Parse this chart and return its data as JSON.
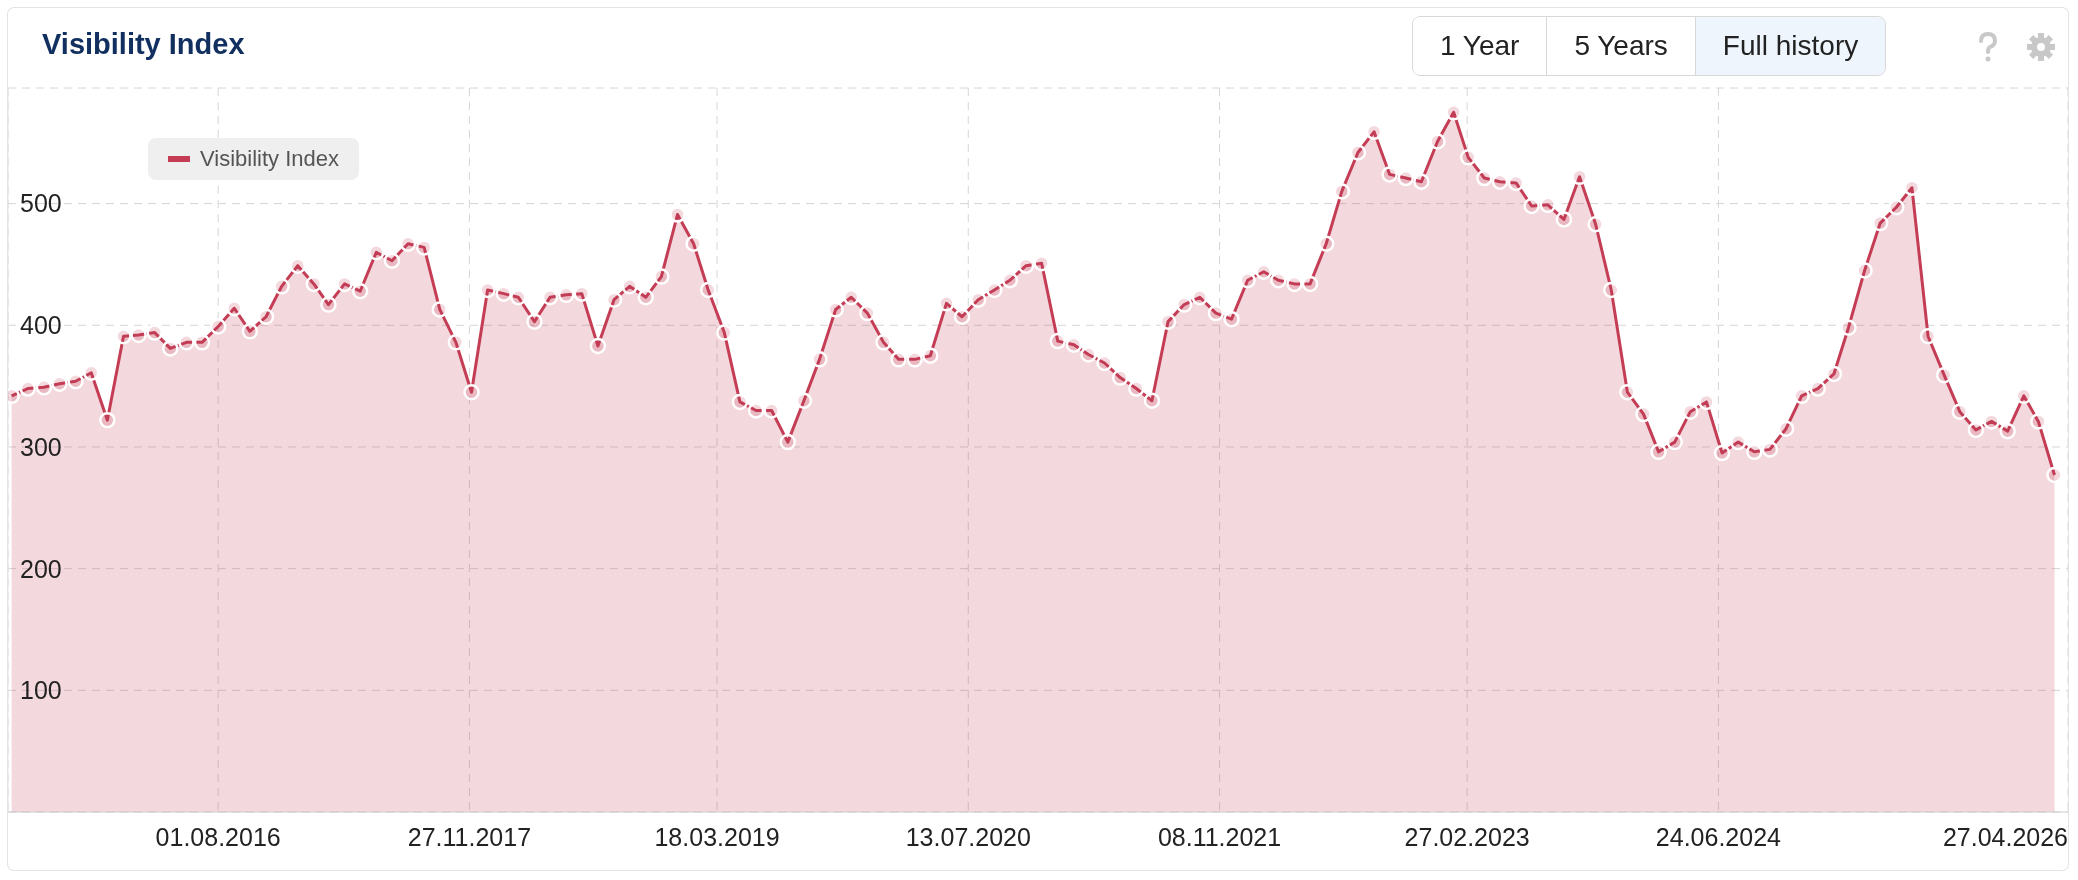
{
  "chart_data": {
    "type": "area",
    "title": "Visibility Index",
    "annotations": [
      "1 Year",
      "5 Years",
      "Full history"
    ],
    "x": [
      "2015-07",
      "2015-08",
      "2015-09",
      "2015-10",
      "2015-11",
      "2015-12",
      "2016-01",
      "2016-02",
      "2016-03",
      "2016-04",
      "2016-05",
      "2016-06",
      "2016-07",
      "2016-08",
      "2016-09",
      "2016-10",
      "2016-11",
      "2016-12",
      "2017-01",
      "2017-02",
      "2017-03",
      "2017-04",
      "2017-05",
      "2017-06",
      "2017-07",
      "2017-08",
      "2017-09",
      "2017-10",
      "2017-11",
      "2017-12",
      "2018-01",
      "2018-02",
      "2018-03",
      "2018-04",
      "2018-05",
      "2018-06",
      "2018-07",
      "2018-08",
      "2018-09",
      "2018-10",
      "2018-11",
      "2018-12",
      "2019-01",
      "2019-02",
      "2019-03",
      "2019-04",
      "2019-05",
      "2019-06",
      "2019-07",
      "2019-08",
      "2019-09",
      "2019-10",
      "2019-11",
      "2019-12",
      "2020-01",
      "2020-02",
      "2020-03",
      "2020-04",
      "2020-05",
      "2020-06",
      "2020-07",
      "2020-08",
      "2020-09",
      "2020-10",
      "2020-11",
      "2020-12",
      "2021-01",
      "2021-02",
      "2021-03",
      "2021-04",
      "2021-05",
      "2021-06",
      "2021-07",
      "2021-08",
      "2021-09",
      "2021-10",
      "2021-11",
      "2021-12",
      "2022-01",
      "2022-02",
      "2022-03",
      "2022-04",
      "2022-05",
      "2022-06",
      "2022-07",
      "2022-08",
      "2022-09",
      "2022-10",
      "2022-11",
      "2022-12",
      "2023-01",
      "2023-02",
      "2023-03",
      "2023-04",
      "2023-05",
      "2023-06",
      "2023-07",
      "2023-08",
      "2023-09",
      "2023-10",
      "2023-11",
      "2023-12",
      "2024-01",
      "2024-02",
      "2024-03",
      "2024-04",
      "2024-05",
      "2024-06",
      "2024-07",
      "2024-08",
      "2024-09",
      "2024-10",
      "2024-11",
      "2024-12",
      "2025-01",
      "2025-02",
      "2025-03",
      "2025-04",
      "2025-05",
      "2025-06",
      "2025-07",
      "2025-08",
      "2025-09",
      "2025-10",
      "2025-11",
      "2025-12",
      "2026-01",
      "2026-02",
      "2026-03",
      "2026-04"
    ],
    "series": [
      {
        "name": "Visibility Index",
        "color": "#c43d55",
        "values": [
          342,
          348,
          349,
          352,
          354,
          361,
          322,
          391,
          392,
          394,
          381,
          386,
          386,
          399,
          414,
          395,
          407,
          432,
          449,
          434,
          417,
          434,
          428,
          460,
          453,
          467,
          464,
          413,
          386,
          345,
          429,
          426,
          423,
          403,
          423,
          425,
          426,
          383,
          421,
          432,
          423,
          440,
          491,
          467,
          429,
          394,
          337,
          330,
          330,
          304,
          338,
          372,
          413,
          423,
          410,
          386,
          372,
          372,
          375,
          418,
          407,
          421,
          429,
          437,
          449,
          451,
          387,
          384,
          376,
          369,
          357,
          348,
          338,
          403,
          417,
          423,
          410,
          405,
          437,
          444,
          437,
          434,
          434,
          467,
          510,
          542,
          559,
          524,
          521,
          518,
          551,
          575,
          538,
          521,
          518,
          517,
          498,
          499,
          487,
          522,
          483,
          429,
          345,
          327,
          296,
          304,
          329,
          337,
          295,
          304,
          296,
          298,
          315,
          342,
          348,
          360,
          398,
          445,
          484,
          497,
          513,
          391,
          359,
          329,
          314,
          321,
          313,
          342,
          321,
          277
        ]
      }
    ],
    "xlim": [
      "2015-06-24",
      "2026-04-27"
    ],
    "xticks": [
      {
        "value": "2016-08-01",
        "label": "01.08.2016"
      },
      {
        "value": "2017-11-27",
        "label": "27.11.2017"
      },
      {
        "value": "2019-03-18",
        "label": "18.03.2019"
      },
      {
        "value": "2020-07-13",
        "label": "13.07.2020"
      },
      {
        "value": "2021-11-08",
        "label": "08.11.2021"
      },
      {
        "value": "2023-02-27",
        "label": "27.02.2023"
      },
      {
        "value": "2024-06-24",
        "label": "24.06.2024"
      },
      {
        "value": "2026-04-27",
        "label": "27.04.2026"
      }
    ],
    "ylim": [
      0,
      595
    ],
    "yticks": [
      100,
      200,
      300,
      400,
      500
    ],
    "grid": true,
    "legend": "top left",
    "marker": "circle",
    "line_style": "solid"
  }
}
